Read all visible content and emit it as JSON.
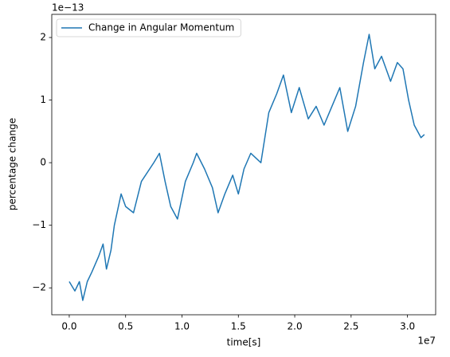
{
  "chart_data": {
    "type": "line",
    "xlabel": "time[s]",
    "ylabel": "percentage change",
    "x_offset_label": "1e7",
    "y_offset_label": "1e−13",
    "legend": "upper left",
    "x": [
      0.0,
      0.05,
      0.09,
      0.12,
      0.16,
      0.2,
      0.26,
      0.3,
      0.33,
      0.37,
      0.4,
      0.46,
      0.5,
      0.57,
      0.64,
      0.75,
      0.8,
      0.85,
      0.9,
      0.96,
      1.03,
      1.1,
      1.13,
      1.2,
      1.27,
      1.32,
      1.38,
      1.45,
      1.5,
      1.55,
      1.61,
      1.7,
      1.77,
      1.84,
      1.9,
      1.97,
      2.04,
      2.12,
      2.19,
      2.26,
      2.33,
      2.4,
      2.47,
      2.54,
      2.61,
      2.66,
      2.71,
      2.77,
      2.85,
      2.91,
      2.96,
      3.01,
      3.06,
      3.12,
      3.15
    ],
    "series": [
      {
        "name": "Change in Angular Momentum",
        "color": "#1f77b4",
        "values": [
          -1.9,
          -2.05,
          -1.9,
          -2.2,
          -1.9,
          -1.75,
          -1.5,
          -1.3,
          -1.7,
          -1.4,
          -1.0,
          -0.5,
          -0.7,
          -0.8,
          -0.3,
          0.0,
          0.15,
          -0.3,
          -0.7,
          -0.9,
          -0.3,
          0.0,
          0.15,
          -0.1,
          -0.4,
          -0.8,
          -0.5,
          -0.2,
          -0.5,
          -0.1,
          0.15,
          0.0,
          0.8,
          1.1,
          1.4,
          0.8,
          1.2,
          0.7,
          0.9,
          0.6,
          0.9,
          1.2,
          0.5,
          0.9,
          1.6,
          2.05,
          1.5,
          1.7,
          1.3,
          1.6,
          1.5,
          1.0,
          0.6,
          0.4,
          0.45
        ]
      }
    ],
    "xlim": [
      -0.155,
      3.25
    ],
    "ylim": [
      -2.43,
      2.37
    ],
    "xticks": [
      {
        "value": 0,
        "label": "0.0"
      },
      {
        "value": 0.5,
        "label": "0.5"
      },
      {
        "value": 1,
        "label": "1.0"
      },
      {
        "value": 1.5,
        "label": "1.5"
      },
      {
        "value": 2,
        "label": "2.0"
      },
      {
        "value": 2.5,
        "label": "2.5"
      },
      {
        "value": 3,
        "label": "3.0"
      }
    ],
    "yticks": [
      {
        "value": -2,
        "label": "−2"
      },
      {
        "value": -1,
        "label": "−1"
      },
      0,
      1,
      2
    ]
  }
}
